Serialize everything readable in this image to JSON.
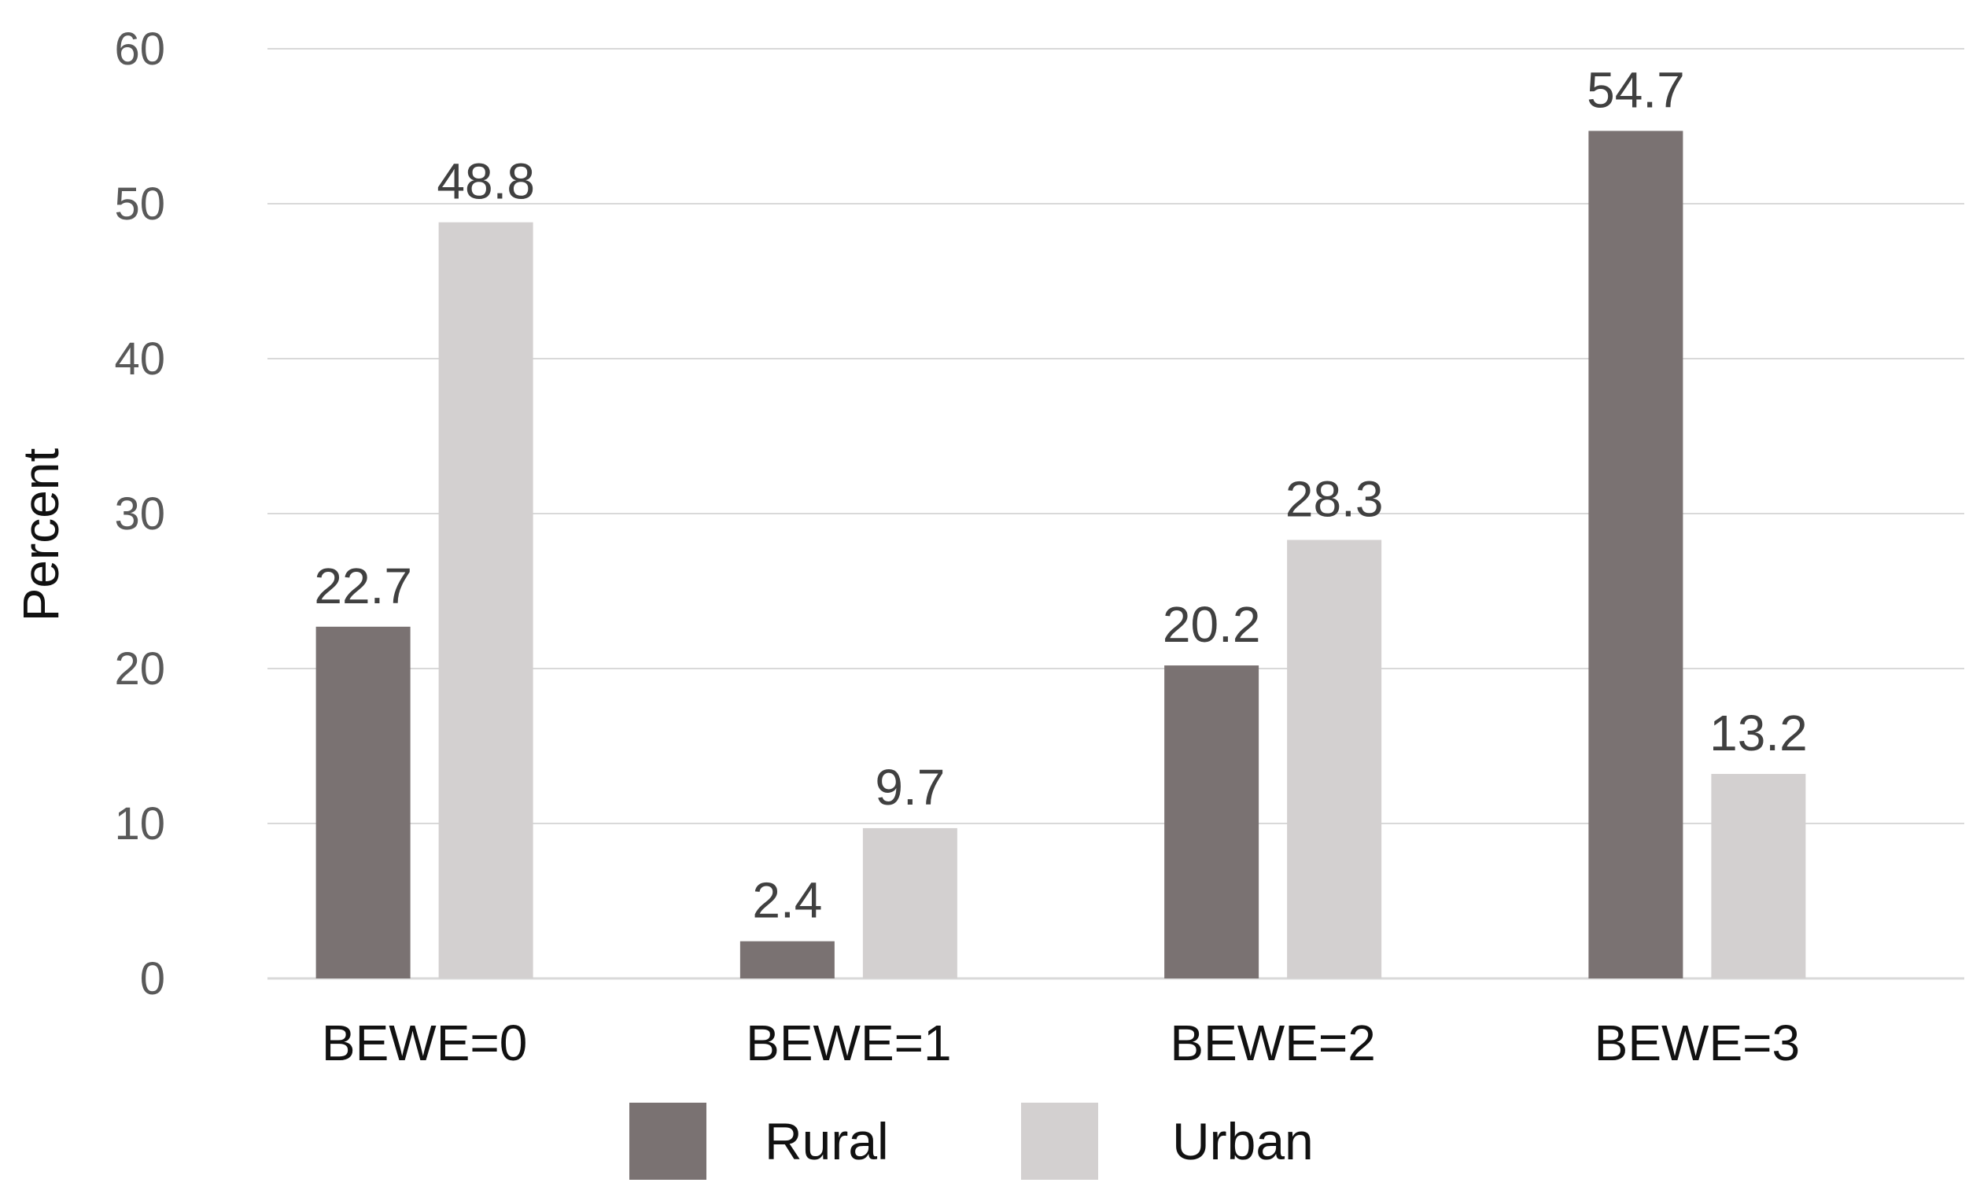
{
  "chart_data": {
    "type": "bar",
    "title": "",
    "xlabel": "",
    "ylabel": "Percent",
    "ylim": [
      0,
      60
    ],
    "yticks": [
      0,
      10,
      20,
      30,
      40,
      50,
      60
    ],
    "grid": true,
    "legend_position": "bottom",
    "categories": [
      "BEWE=0",
      "BEWE=1",
      "BEWE=2",
      "BEWE=3"
    ],
    "series": [
      {
        "name": "Rural",
        "color": "#7a7272",
        "values": [
          22.7,
          2.4,
          20.2,
          54.7
        ],
        "labels": [
          "22.7",
          "2.4",
          "20.2",
          "54.7"
        ]
      },
      {
        "name": "Urban",
        "color": "#d3d0d0",
        "values": [
          48.8,
          9.7,
          28.3,
          13.2
        ],
        "labels": [
          "48.8",
          "9.7",
          "28.3",
          "13.2"
        ]
      }
    ]
  }
}
